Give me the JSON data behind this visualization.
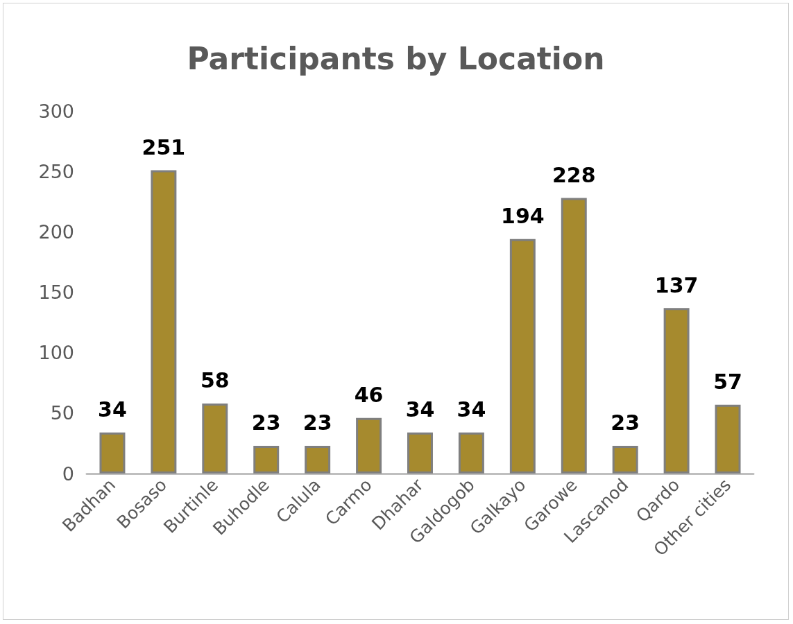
{
  "chart_data": {
    "type": "bar",
    "title": "Participants by Location",
    "categories": [
      "Badhan",
      "Bosaso",
      "Burtinle",
      "Buhodle",
      "Calula",
      "Carmo",
      "Dhahar",
      "Galdogob",
      "Galkayo",
      "Garowe",
      "Lascanod",
      "Qardo",
      "Other cities"
    ],
    "values": [
      34,
      251,
      58,
      23,
      23,
      46,
      34,
      34,
      194,
      228,
      23,
      137,
      57
    ],
    "color": "#a68a2e",
    "ylim": [
      0,
      300
    ],
    "yticks": [
      0,
      50,
      100,
      150,
      200,
      250,
      300
    ],
    "grid": false,
    "data_labels": true
  }
}
